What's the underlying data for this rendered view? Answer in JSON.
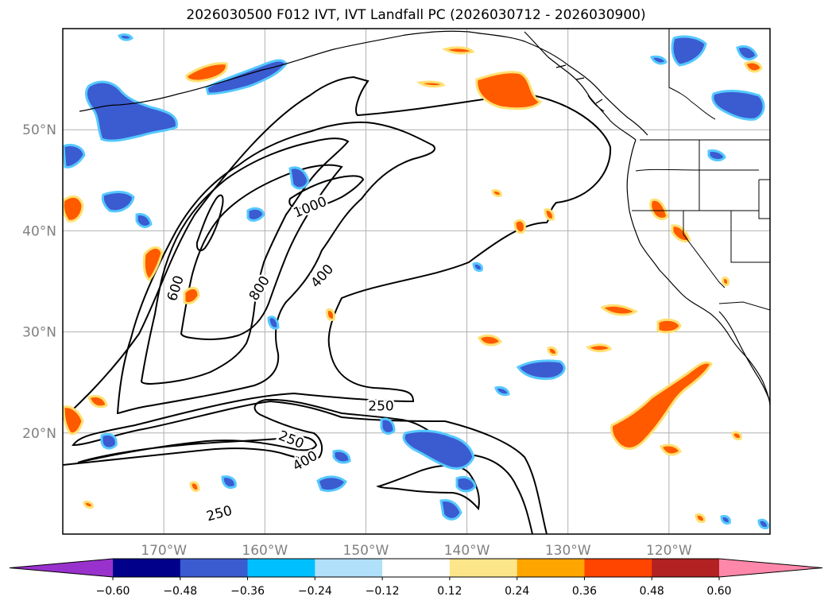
{
  "title": "2026030500 F012 IVT, IVT Landfall PC (2026030712 - 2026030900)",
  "map": {
    "lon_range": [
      -180,
      -110
    ],
    "lat_range": [
      10,
      60
    ],
    "lon_ticks": [
      {
        "value": -170,
        "label": "170°W"
      },
      {
        "value": -160,
        "label": "160°W"
      },
      {
        "value": -150,
        "label": "150°W"
      },
      {
        "value": -140,
        "label": "140°W"
      },
      {
        "value": -130,
        "label": "130°W"
      },
      {
        "value": -120,
        "label": "120°W"
      }
    ],
    "lat_ticks": [
      {
        "value": 20,
        "label": "20°N"
      },
      {
        "value": 30,
        "label": "30°N"
      },
      {
        "value": 40,
        "label": "40°N"
      },
      {
        "value": 50,
        "label": "50°N"
      }
    ],
    "grid": true
  },
  "contour_labels": [
    {
      "text": "1000",
      "lon": -155.5,
      "lat": 42.3,
      "angle": -22
    },
    {
      "text": "600",
      "lon": -168.8,
      "lat": 34.3,
      "angle": -72
    },
    {
      "text": "800",
      "lon": -160.5,
      "lat": 34.3,
      "angle": -58
    },
    {
      "text": "400",
      "lon": -154.3,
      "lat": 35.5,
      "angle": -48
    },
    {
      "text": "250",
      "lon": -148.5,
      "lat": 22.6,
      "angle": 0
    },
    {
      "text": "250",
      "lon": -157.4,
      "lat": 19.3,
      "angle": 22
    },
    {
      "text": "400",
      "lon": -156.0,
      "lat": 17.2,
      "angle": -30
    },
    {
      "text": "250",
      "lon": -164.5,
      "lat": 12.0,
      "angle": -15
    }
  ],
  "colorbar": {
    "colors": [
      "#9932cc",
      "#00008b",
      "#3b5bd0",
      "#00bfff",
      "#b0e0fa",
      "#ffffff",
      "#fde68a",
      "#ffa500",
      "#ff4500",
      "#b22222",
      "#ff88aa"
    ],
    "tick_labels": [
      "−0.60",
      "−0.48",
      "−0.36",
      "−0.24",
      "−0.12",
      "0.12",
      "0.24",
      "0.36",
      "0.48",
      "0.60"
    ],
    "extend": "both"
  },
  "colors": {
    "positive_fill": "#ff5a00",
    "positive_edge": "#ffe070",
    "negative_fill": "#3b5bd0",
    "negative_edge": "#55c8ff",
    "contour": "#000000",
    "grid": "#b0b0b0",
    "tick_text": "#808080"
  }
}
